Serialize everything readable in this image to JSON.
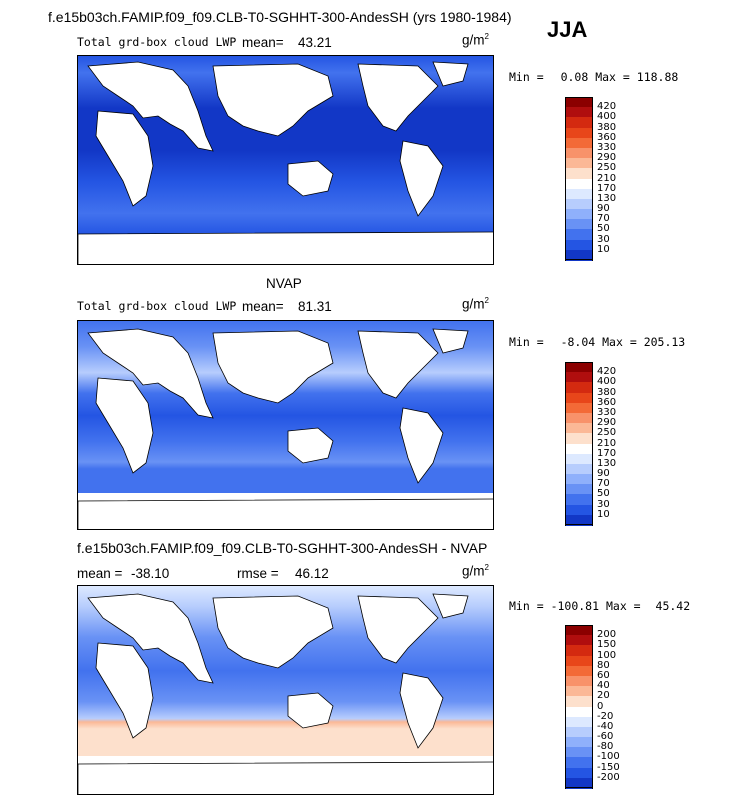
{
  "header": {
    "title": "f.e15b03ch.FAMIP.f09_f09.CLB-T0-SGHHT-300-AndesSH (yrs 1980-1984)",
    "season": "JJA"
  },
  "panels": [
    {
      "id": "model",
      "title": "",
      "variable": "Total grd-box cloud LWP",
      "mean_label": "mean=",
      "mean": "43.21",
      "rmse_label": "",
      "rmse": "",
      "units_base": "g/m",
      "units_exp": "2",
      "min_label": "Min =",
      "min": "0.08",
      "max_label": "Max =",
      "max": "118.88",
      "levels": [
        "420",
        "400",
        "380",
        "360",
        "330",
        "290",
        "250",
        "210",
        "170",
        "130",
        "90",
        "70",
        "50",
        "30",
        "10"
      ],
      "colors": [
        "#8b0000",
        "#b00e0e",
        "#d42a10",
        "#e8461a",
        "#f36a37",
        "#f8926a",
        "#fbb896",
        "#fde0cc",
        "#ffffff",
        "#dde9ff",
        "#b7cdfd",
        "#8fb0fb",
        "#6992f5",
        "#4272ee",
        "#2455e3",
        "#1237c6",
        "#001c9c",
        "#000078"
      ]
    },
    {
      "id": "obs",
      "title": "NVAP",
      "variable": "Total grd-box cloud LWP",
      "mean_label": "mean=",
      "mean": "81.31",
      "rmse_label": "",
      "rmse": "",
      "units_base": "g/m",
      "units_exp": "2",
      "min_label": "Min =",
      "min": "-8.04",
      "max_label": "Max =",
      "max": "205.13",
      "levels": [
        "420",
        "400",
        "380",
        "360",
        "330",
        "290",
        "250",
        "210",
        "170",
        "130",
        "90",
        "70",
        "50",
        "30",
        "10"
      ],
      "colors": [
        "#8b0000",
        "#b00e0e",
        "#d42a10",
        "#e8461a",
        "#f36a37",
        "#f8926a",
        "#fbb896",
        "#fde0cc",
        "#ffffff",
        "#dde9ff",
        "#b7cdfd",
        "#8fb0fb",
        "#6992f5",
        "#4272ee",
        "#2455e3",
        "#1237c6",
        "#001c9c",
        "#000078"
      ]
    },
    {
      "id": "diff",
      "title": "f.e15b03ch.FAMIP.f09_f09.CLB-T0-SGHHT-300-AndesSH - NVAP",
      "variable": "",
      "mean_label": "mean =",
      "mean": "-38.10",
      "rmse_label": "rmse =",
      "rmse": "46.12",
      "units_base": "g/m",
      "units_exp": "2",
      "min_label": "Min =",
      "min": "-100.81",
      "max_label": "Max =",
      "max": "45.42",
      "levels": [
        "200",
        "150",
        "100",
        "80",
        "60",
        "40",
        "20",
        "0",
        "-20",
        "-40",
        "-60",
        "-80",
        "-100",
        "-150",
        "-200"
      ],
      "colors": [
        "#8b0000",
        "#b00e0e",
        "#d42a10",
        "#e8461a",
        "#f36a37",
        "#f8926a",
        "#fbb896",
        "#fde0cc",
        "#ffffff",
        "#dde9ff",
        "#b7cdfd",
        "#8fb0fb",
        "#6992f5",
        "#4272ee",
        "#2455e3",
        "#1237c6",
        "#001c9c",
        "#000078"
      ]
    }
  ],
  "chart_data": [
    {
      "type": "heatmap",
      "title": "f.e15b03ch.FAMIP.f09_f09.CLB-T0-SGHHT-300-AndesSH (yrs 1980-1984)",
      "subtitle": "Total grd-box cloud LWP",
      "season": "JJA",
      "units": "g/m2",
      "mean": 43.21,
      "min": 0.08,
      "max": 118.88,
      "contour_levels": [
        10,
        30,
        50,
        70,
        90,
        130,
        170,
        210,
        250,
        290,
        330,
        360,
        380,
        400,
        420
      ]
    },
    {
      "type": "heatmap",
      "title": "NVAP",
      "subtitle": "Total grd-box cloud LWP",
      "season": "JJA",
      "units": "g/m2",
      "mean": 81.31,
      "min": -8.04,
      "max": 205.13,
      "contour_levels": [
        10,
        30,
        50,
        70,
        90,
        130,
        170,
        210,
        250,
        290,
        330,
        360,
        380,
        400,
        420
      ]
    },
    {
      "type": "heatmap",
      "title": "f.e15b03ch.FAMIP.f09_f09.CLB-T0-SGHHT-300-AndesSH - NVAP",
      "season": "JJA",
      "units": "g/m2",
      "mean": -38.1,
      "rmse": 46.12,
      "min": -100.81,
      "max": 45.42,
      "contour_levels": [
        -200,
        -150,
        -100,
        -80,
        -60,
        -40,
        -20,
        0,
        20,
        40,
        60,
        80,
        100,
        150,
        200
      ]
    }
  ]
}
